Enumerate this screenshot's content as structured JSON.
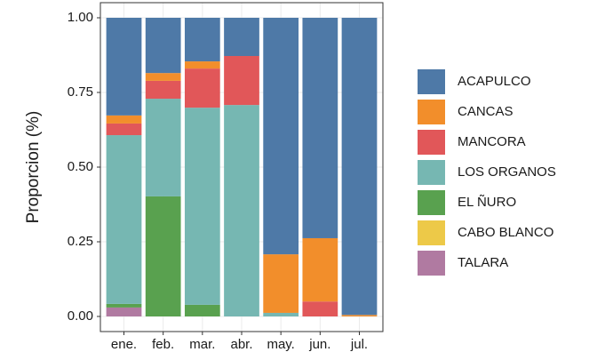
{
  "chart_data": {
    "type": "stacked_bar",
    "y_label": "Proporcion (%)",
    "categories": [
      "ene.",
      "feb.",
      "mar.",
      "abr.",
      "may.",
      "jun.",
      "jul."
    ],
    "series": [
      {
        "name": "ACAPULCO",
        "color": "#4e79a7",
        "values": [
          0.327,
          0.185,
          0.146,
          0.128,
          0.792,
          0.738,
          0.995
        ]
      },
      {
        "name": "CANCAS",
        "color": "#f28e2b",
        "values": [
          0.027,
          0.026,
          0.024,
          0,
          0.196,
          0.212,
          0.005
        ]
      },
      {
        "name": "MANCORA",
        "color": "#e15759",
        "values": [
          0.039,
          0.06,
          0.131,
          0.164,
          0,
          0.05,
          0
        ]
      },
      {
        "name": "LOS ORGANOS",
        "color": "#76b7b2",
        "values": [
          0.565,
          0.327,
          0.66,
          0.708,
          0.012,
          0,
          0
        ]
      },
      {
        "name": "EL ÑURO",
        "color": "#59a14f",
        "values": [
          0.012,
          0.402,
          0.039,
          0,
          0,
          0,
          0
        ]
      },
      {
        "name": "CABO BLANCO",
        "color": "#edc948",
        "values": [
          0,
          0,
          0,
          0,
          0,
          0,
          0
        ]
      },
      {
        "name": "TALARA",
        "color": "#b07aa1",
        "values": [
          0.03,
          0,
          0,
          0,
          0,
          0,
          0
        ]
      }
    ],
    "ylim": [
      0,
      1
    ],
    "yticks": [
      {
        "value": 0,
        "label": "0.00"
      },
      {
        "value": 0.25,
        "label": "0.25"
      },
      {
        "value": 0.5,
        "label": "0.50"
      },
      {
        "value": 0.75,
        "label": "0.75"
      },
      {
        "value": 1,
        "label": "1.00"
      }
    ],
    "grid": true
  }
}
